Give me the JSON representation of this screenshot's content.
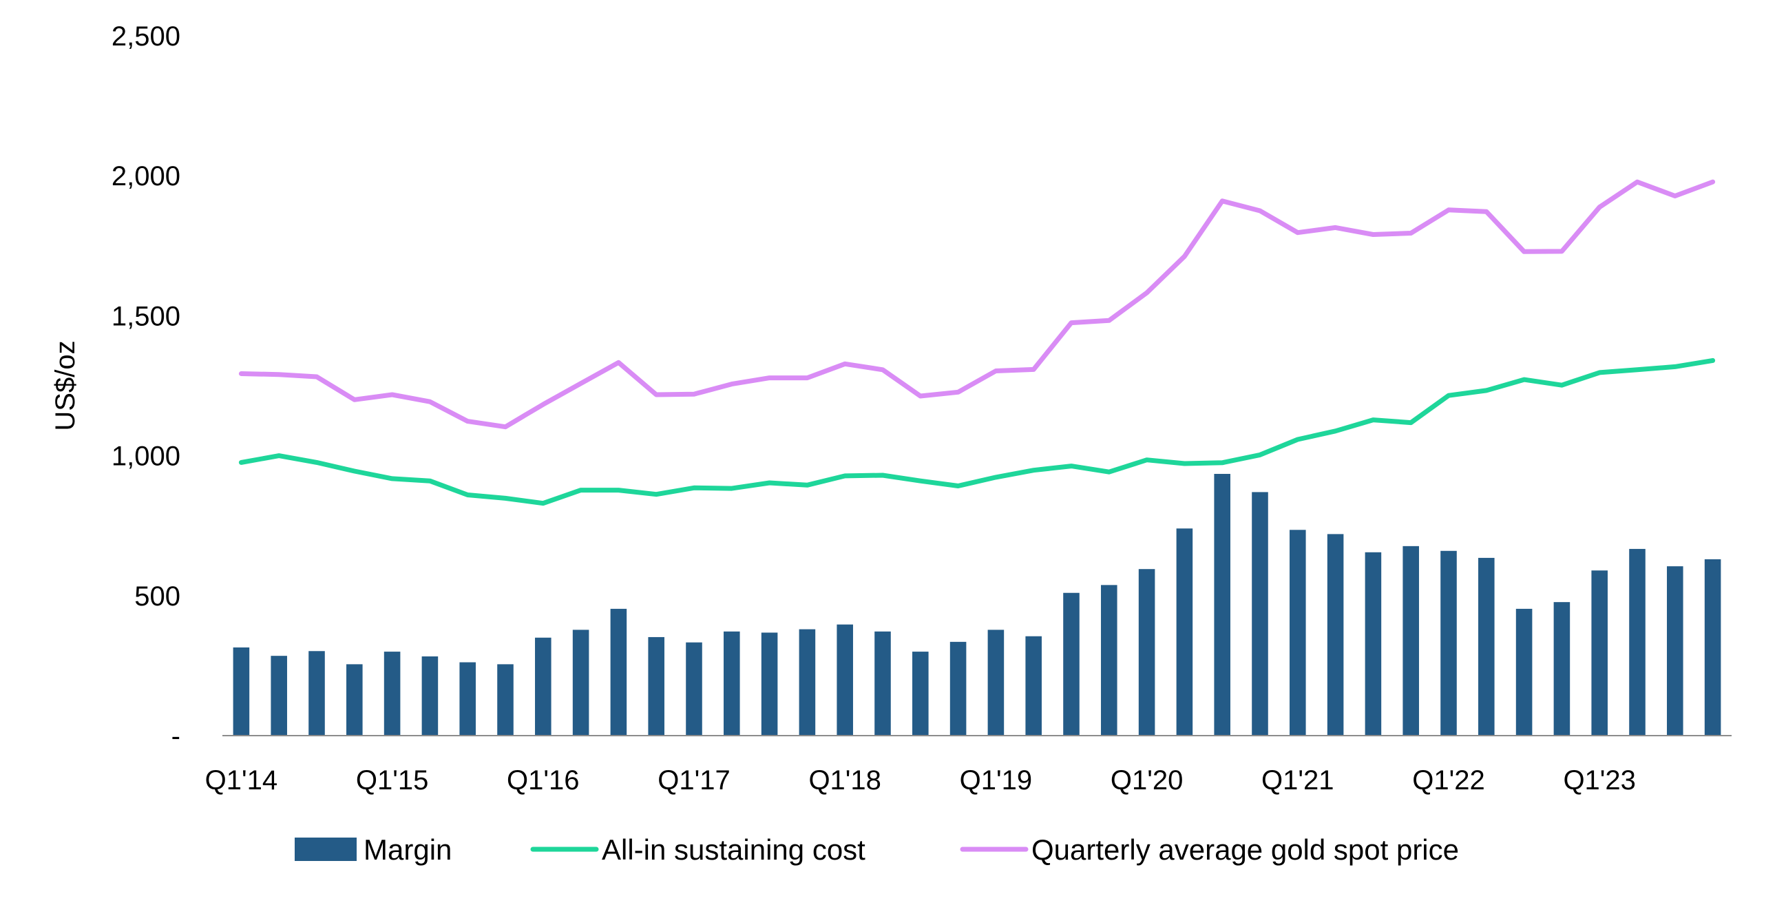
{
  "chart_data": {
    "type": "bar",
    "title": "",
    "xlabel": "",
    "ylabel": "US$/oz",
    "ylim": [
      0,
      2500
    ],
    "yticks": [
      0,
      500,
      1000,
      1500,
      2000,
      2500
    ],
    "ytick_labels": [
      "-",
      "500",
      "1,000",
      "1,500",
      "2,000",
      "2,500"
    ],
    "grid": false,
    "legend_position": "bottom",
    "categories": [
      "Q1'14",
      "Q2'14",
      "Q3'14",
      "Q4'14",
      "Q1'15",
      "Q2'15",
      "Q3'15",
      "Q4'15",
      "Q1'16",
      "Q2'16",
      "Q3'16",
      "Q4'16",
      "Q1'17",
      "Q2'17",
      "Q3'17",
      "Q4'17",
      "Q1'18",
      "Q2'18",
      "Q3'18",
      "Q4'18",
      "Q1'19",
      "Q2'19",
      "Q3'19",
      "Q4'19",
      "Q1'20",
      "Q2'20",
      "Q3'20",
      "Q4'20",
      "Q1'21",
      "Q2'21",
      "Q3'21",
      "Q4'21",
      "Q1'22",
      "Q2'22",
      "Q3'22",
      "Q4'22",
      "Q1'23",
      "Q2'23",
      "Q3'23",
      "Q4'23"
    ],
    "x_tick_labels": [
      {
        "index": 0,
        "label": "Q1'14"
      },
      {
        "index": 4,
        "label": "Q1'15"
      },
      {
        "index": 8,
        "label": "Q1'16"
      },
      {
        "index": 12,
        "label": "Q1'17"
      },
      {
        "index": 16,
        "label": "Q1'18"
      },
      {
        "index": 20,
        "label": "Q1'19"
      },
      {
        "index": 24,
        "label": "Q1'20"
      },
      {
        "index": 28,
        "label": "Q1'21"
      },
      {
        "index": 32,
        "label": "Q1'22"
      },
      {
        "index": 36,
        "label": "Q1'23"
      }
    ],
    "series": [
      {
        "name": "Margin",
        "kind": "bar",
        "color": "#245B87",
        "values": [
          315,
          285,
          302,
          255,
          300,
          283,
          262,
          255,
          350,
          378,
          453,
          352,
          333,
          372,
          368,
          380,
          397,
          372,
          300,
          335,
          378,
          355,
          510,
          538,
          595,
          740,
          935,
          870,
          735,
          720,
          655,
          677,
          660,
          635,
          453,
          477,
          590,
          667,
          605,
          630
        ]
      },
      {
        "name": "All-in sustaining cost",
        "kind": "line",
        "color": "#1ED69A",
        "values": [
          976,
          1000,
          976,
          945,
          918,
          910,
          860,
          848,
          830,
          877,
          877,
          862,
          885,
          883,
          903,
          895,
          928,
          930,
          910,
          892,
          923,
          948,
          963,
          942,
          985,
          972,
          975,
          1003,
          1058,
          1088,
          1128,
          1118,
          1215,
          1233,
          1272,
          1252,
          1297,
          1307,
          1318,
          1340
        ]
      },
      {
        "name": "Quarterly average gold spot price",
        "kind": "line",
        "color": "#D98CF5",
        "values": [
          1293,
          1290,
          1282,
          1200,
          1218,
          1193,
          1123,
          1103,
          1183,
          1258,
          1333,
          1218,
          1220,
          1256,
          1278,
          1278,
          1328,
          1307,
          1213,
          1227,
          1303,
          1308,
          1475,
          1483,
          1582,
          1712,
          1910,
          1875,
          1797,
          1815,
          1790,
          1795,
          1878,
          1872,
          1729,
          1730,
          1888,
          1978,
          1928,
          1978
        ]
      }
    ]
  }
}
